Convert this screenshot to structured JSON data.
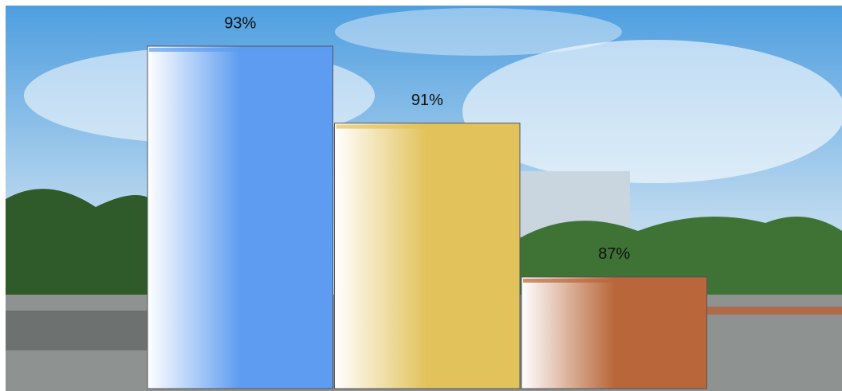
{
  "chart_data": {
    "type": "bar",
    "categories": [
      null,
      null,
      null
    ],
    "values": [
      93,
      91,
      87
    ],
    "value_labels": [
      "93%",
      "91%",
      "87%"
    ],
    "colors": [
      "#5d9cf0",
      "#e2c25a",
      "#b9673a"
    ],
    "ylim": [
      84.1,
      94.2
    ]
  }
}
